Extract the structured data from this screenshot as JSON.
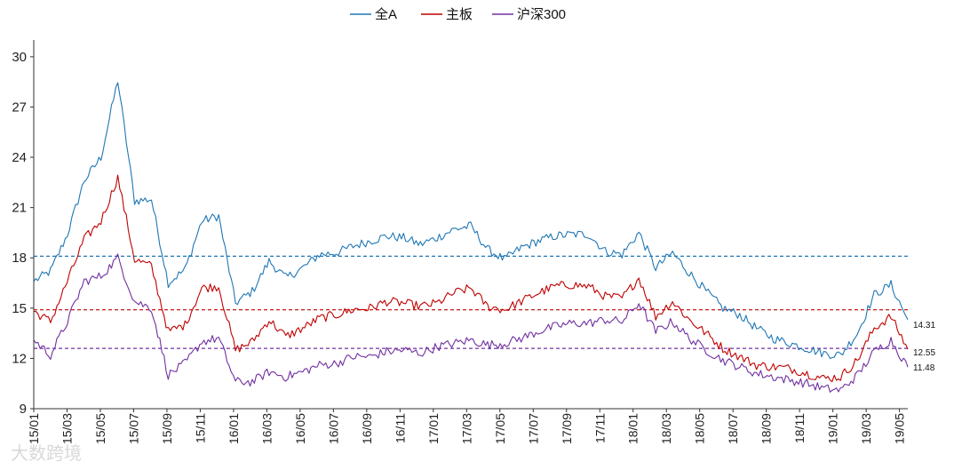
{
  "chart_data": {
    "type": "line",
    "title": "",
    "xlabel": "",
    "ylabel": "",
    "ylim": [
      9,
      31
    ],
    "yticks": [
      9,
      12,
      15,
      18,
      21,
      24,
      27,
      30
    ],
    "x_tick_labels": [
      "15/01",
      "15/03",
      "15/05",
      "15/07",
      "15/09",
      "15/11",
      "16/01",
      "16/03",
      "16/05",
      "16/07",
      "16/09",
      "16/11",
      "17/01",
      "17/03",
      "17/05",
      "17/07",
      "17/09",
      "17/11",
      "18/01",
      "18/03",
      "18/05",
      "18/07",
      "18/09",
      "18/11",
      "19/01",
      "19/03",
      "19/05"
    ],
    "legend_position": "top-center",
    "grid": false,
    "x": [
      "2015-01",
      "2015-02",
      "2015-03",
      "2015-04",
      "2015-05",
      "2015-06",
      "2015-07",
      "2015-08",
      "2015-09",
      "2015-10",
      "2015-11",
      "2015-12",
      "2016-01",
      "2016-02",
      "2016-03",
      "2016-04",
      "2016-05",
      "2016-06",
      "2016-07",
      "2016-08",
      "2016-09",
      "2016-10",
      "2016-11",
      "2016-12",
      "2017-01",
      "2017-02",
      "2017-03",
      "2017-04",
      "2017-05",
      "2017-06",
      "2017-07",
      "2017-08",
      "2017-09",
      "2017-10",
      "2017-11",
      "2017-12",
      "2018-01",
      "2018-02",
      "2018-03",
      "2018-04",
      "2018-05",
      "2018-06",
      "2018-07",
      "2018-08",
      "2018-09",
      "2018-10",
      "2018-11",
      "2018-12",
      "2019-01",
      "2019-02",
      "2019-03",
      "2019-04",
      "2019-05"
    ],
    "series": [
      {
        "name": "全A",
        "color": "#1f77b4",
        "mean": 18.1,
        "end_label": "14.31",
        "values": [
          16.6,
          17.2,
          19.4,
          22.6,
          24.0,
          28.6,
          21.4,
          21.5,
          16.5,
          17.3,
          20.2,
          20.5,
          15.3,
          16.0,
          17.8,
          16.8,
          17.4,
          18.2,
          18.3,
          18.7,
          19.0,
          19.3,
          19.2,
          18.8,
          19.2,
          19.7,
          19.9,
          18.5,
          17.9,
          18.6,
          19.0,
          19.3,
          19.4,
          19.4,
          18.4,
          18.2,
          19.5,
          17.4,
          18.3,
          17.1,
          16.0,
          15.0,
          14.6,
          13.8,
          13.2,
          12.9,
          12.6,
          12.3,
          12.2,
          13.5,
          15.8,
          16.4,
          14.31
        ]
      },
      {
        "name": "主板",
        "color": "#c00000",
        "mean": 14.9,
        "end_label": "12.55",
        "values": [
          14.8,
          14.2,
          16.6,
          19.1,
          20.2,
          22.8,
          17.9,
          17.5,
          13.6,
          14.0,
          16.2,
          16.3,
          12.5,
          13.0,
          14.3,
          13.3,
          13.8,
          14.4,
          14.6,
          14.9,
          15.0,
          15.4,
          15.3,
          15.1,
          15.3,
          15.9,
          16.2,
          15.1,
          14.9,
          15.4,
          15.9,
          16.3,
          16.4,
          16.3,
          15.7,
          15.6,
          16.8,
          14.5,
          15.4,
          14.3,
          13.5,
          12.6,
          12.1,
          11.6,
          11.5,
          11.4,
          11.1,
          10.8,
          10.9,
          11.9,
          13.8,
          14.5,
          12.55
        ]
      },
      {
        "name": "沪深300",
        "color": "#7030a0",
        "mean": 12.6,
        "end_label": "11.48",
        "values": [
          13.1,
          12.2,
          14.2,
          16.6,
          16.9,
          18.0,
          15.4,
          15.0,
          11.0,
          11.7,
          13.0,
          13.2,
          10.6,
          10.6,
          11.2,
          10.9,
          11.2,
          11.6,
          11.7,
          12.1,
          12.1,
          12.4,
          12.5,
          12.3,
          12.7,
          12.9,
          13.1,
          12.8,
          12.9,
          13.2,
          13.6,
          13.9,
          14.1,
          14.1,
          14.3,
          14.2,
          15.3,
          13.6,
          14.2,
          13.2,
          12.5,
          11.9,
          11.5,
          11.1,
          10.9,
          10.7,
          10.5,
          10.2,
          10.1,
          11.0,
          12.4,
          13.1,
          11.48
        ]
      }
    ]
  },
  "watermark": "大数跨境"
}
